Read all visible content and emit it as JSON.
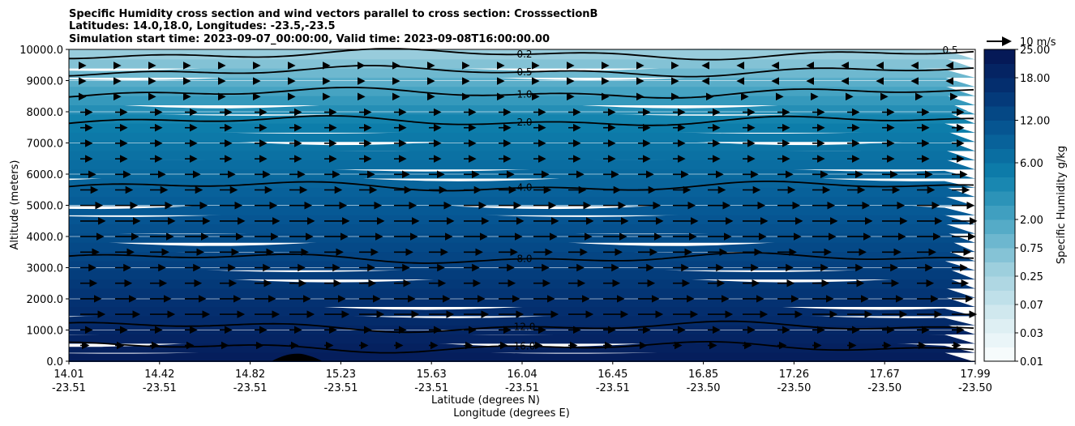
{
  "chart_data": {
    "type": "contour",
    "title_lines": [
      "Specific Humidity cross section and wind vectors parallel to cross section: CrosssectionB",
      "Latitudes: 14.0,18.0, Longitudes: -23.5,-23.5",
      "Simulation start time: 2023-09-07_00:00:00, Valid time: 2023-09-08T16:00:00.00"
    ],
    "ylabel": "Altitude (meters)",
    "xlabel_lines": [
      "Latitude (degrees N)",
      "Longitude (degrees E)"
    ],
    "ylim": [
      0,
      10000
    ],
    "yticks": [
      "0.0",
      "1000.0",
      "2000.0",
      "3000.0",
      "4000.0",
      "5000.0",
      "6000.0",
      "7000.0",
      "8000.0",
      "9000.0",
      "10000.0"
    ],
    "xticks_lat": [
      "14.01",
      "14.42",
      "14.82",
      "15.23",
      "15.63",
      "16.04",
      "16.45",
      "16.85",
      "17.26",
      "17.67",
      "17.99"
    ],
    "xticks_lon": [
      "-23.51",
      "-23.51",
      "-23.51",
      "-23.51",
      "-23.51",
      "-23.51",
      "-23.51",
      "-23.50",
      "-23.50",
      "-23.50",
      "-23.50"
    ],
    "grid": "horizontal",
    "colorbar": {
      "label": "Specific Humidity g/kg",
      "tick_labels": [
        "0.01",
        "0.03",
        "0.07",
        "0.25",
        "0.75",
        "2.00",
        "6.00",
        "12.00",
        "18.00",
        "25.00"
      ],
      "levels": [
        0.01,
        0.02,
        0.03,
        0.05,
        0.07,
        0.1,
        0.25,
        0.5,
        0.75,
        1.0,
        2.0,
        3.0,
        4.0,
        5.0,
        6.0,
        8.0,
        10.0,
        12.0,
        14.0,
        16.0,
        18.0,
        20.0,
        25.0
      ]
    },
    "quiver_key": "10 m/s",
    "contour_lines": [
      {
        "label": "0.2",
        "altitude_m": 9850
      },
      {
        "label": "0.5",
        "altitude_m": 9300
      },
      {
        "label": "1.0",
        "altitude_m": 8600
      },
      {
        "label": "2.0",
        "altitude_m": 7700
      },
      {
        "label": "4.0",
        "altitude_m": 5600
      },
      {
        "label": "8.0",
        "altitude_m": 3300
      },
      {
        "label": "12.0",
        "altitude_m": 1100
      },
      {
        "label": "16.0",
        "altitude_m": 450
      }
    ],
    "corner_label": "0.5",
    "terrain": "small hill near 15.0 N"
  }
}
